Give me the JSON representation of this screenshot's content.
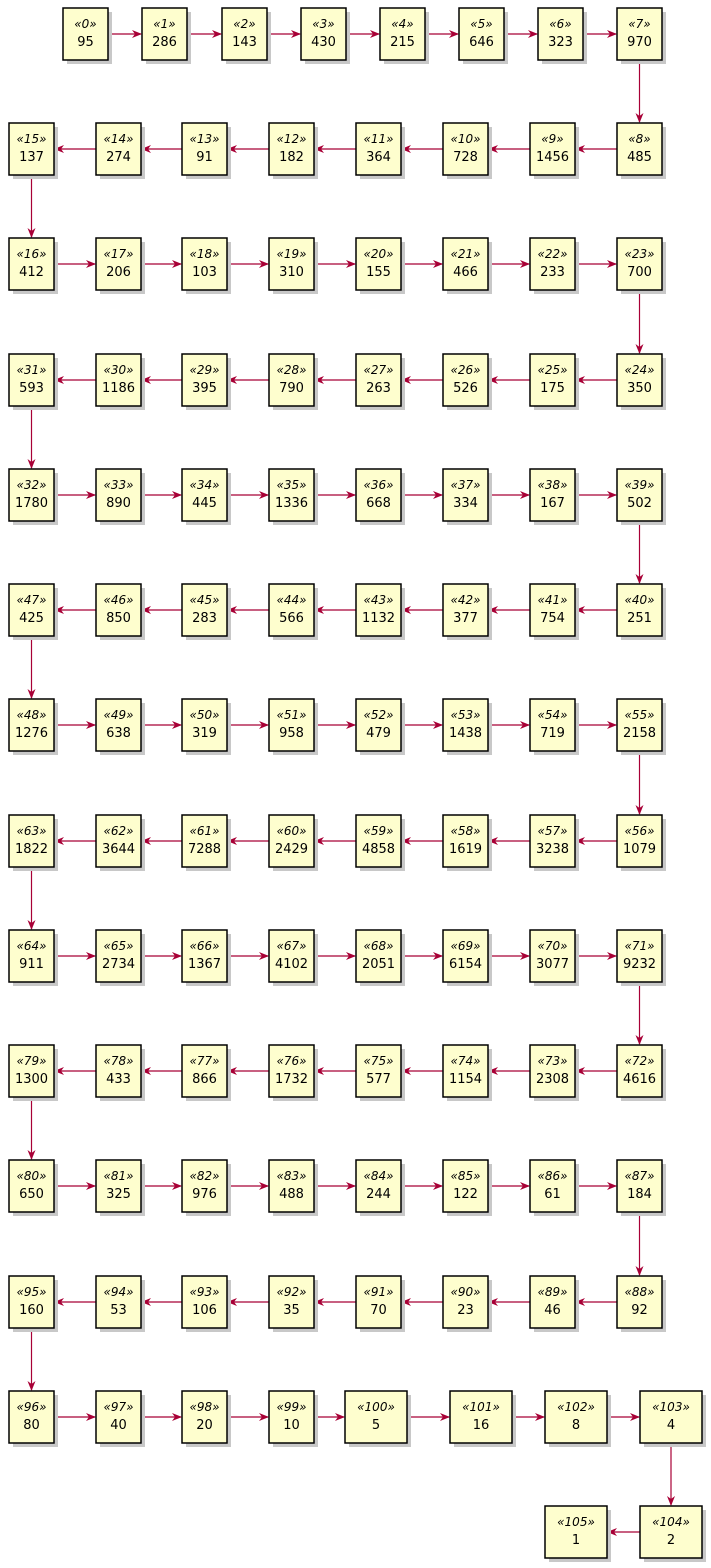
{
  "nodes": [
    {
      "stereotype": "«0»",
      "value": "95"
    },
    {
      "stereotype": "«1»",
      "value": "286"
    },
    {
      "stereotype": "«2»",
      "value": "143"
    },
    {
      "stereotype": "«3»",
      "value": "430"
    },
    {
      "stereotype": "«4»",
      "value": "215"
    },
    {
      "stereotype": "«5»",
      "value": "646"
    },
    {
      "stereotype": "«6»",
      "value": "323"
    },
    {
      "stereotype": "«7»",
      "value": "970"
    },
    {
      "stereotype": "«8»",
      "value": "485"
    },
    {
      "stereotype": "«9»",
      "value": "1456"
    },
    {
      "stereotype": "«10»",
      "value": "728"
    },
    {
      "stereotype": "«11»",
      "value": "364"
    },
    {
      "stereotype": "«12»",
      "value": "182"
    },
    {
      "stereotype": "«13»",
      "value": "91"
    },
    {
      "stereotype": "«14»",
      "value": "274"
    },
    {
      "stereotype": "«15»",
      "value": "137"
    },
    {
      "stereotype": "«16»",
      "value": "412"
    },
    {
      "stereotype": "«17»",
      "value": "206"
    },
    {
      "stereotype": "«18»",
      "value": "103"
    },
    {
      "stereotype": "«19»",
      "value": "310"
    },
    {
      "stereotype": "«20»",
      "value": "155"
    },
    {
      "stereotype": "«21»",
      "value": "466"
    },
    {
      "stereotype": "«22»",
      "value": "233"
    },
    {
      "stereotype": "«23»",
      "value": "700"
    },
    {
      "stereotype": "«24»",
      "value": "350"
    },
    {
      "stereotype": "«25»",
      "value": "175"
    },
    {
      "stereotype": "«26»",
      "value": "526"
    },
    {
      "stereotype": "«27»",
      "value": "263"
    },
    {
      "stereotype": "«28»",
      "value": "790"
    },
    {
      "stereotype": "«29»",
      "value": "395"
    },
    {
      "stereotype": "«30»",
      "value": "1186"
    },
    {
      "stereotype": "«31»",
      "value": "593"
    },
    {
      "stereotype": "«32»",
      "value": "1780"
    },
    {
      "stereotype": "«33»",
      "value": "890"
    },
    {
      "stereotype": "«34»",
      "value": "445"
    },
    {
      "stereotype": "«35»",
      "value": "1336"
    },
    {
      "stereotype": "«36»",
      "value": "668"
    },
    {
      "stereotype": "«37»",
      "value": "334"
    },
    {
      "stereotype": "«38»",
      "value": "167"
    },
    {
      "stereotype": "«39»",
      "value": "502"
    },
    {
      "stereotype": "«40»",
      "value": "251"
    },
    {
      "stereotype": "«41»",
      "value": "754"
    },
    {
      "stereotype": "«42»",
      "value": "377"
    },
    {
      "stereotype": "«43»",
      "value": "1132"
    },
    {
      "stereotype": "«44»",
      "value": "566"
    },
    {
      "stereotype": "«45»",
      "value": "283"
    },
    {
      "stereotype": "«46»",
      "value": "850"
    },
    {
      "stereotype": "«47»",
      "value": "425"
    },
    {
      "stereotype": "«48»",
      "value": "1276"
    },
    {
      "stereotype": "«49»",
      "value": "638"
    },
    {
      "stereotype": "«50»",
      "value": "319"
    },
    {
      "stereotype": "«51»",
      "value": "958"
    },
    {
      "stereotype": "«52»",
      "value": "479"
    },
    {
      "stereotype": "«53»",
      "value": "1438"
    },
    {
      "stereotype": "«54»",
      "value": "719"
    },
    {
      "stereotype": "«55»",
      "value": "2158"
    },
    {
      "stereotype": "«56»",
      "value": "1079"
    },
    {
      "stereotype": "«57»",
      "value": "3238"
    },
    {
      "stereotype": "«58»",
      "value": "1619"
    },
    {
      "stereotype": "«59»",
      "value": "4858"
    },
    {
      "stereotype": "«60»",
      "value": "2429"
    },
    {
      "stereotype": "«61»",
      "value": "7288"
    },
    {
      "stereotype": "«62»",
      "value": "3644"
    },
    {
      "stereotype": "«63»",
      "value": "1822"
    },
    {
      "stereotype": "«64»",
      "value": "911"
    },
    {
      "stereotype": "«65»",
      "value": "2734"
    },
    {
      "stereotype": "«66»",
      "value": "1367"
    },
    {
      "stereotype": "«67»",
      "value": "4102"
    },
    {
      "stereotype": "«68»",
      "value": "2051"
    },
    {
      "stereotype": "«69»",
      "value": "6154"
    },
    {
      "stereotype": "«70»",
      "value": "3077"
    },
    {
      "stereotype": "«71»",
      "value": "9232"
    },
    {
      "stereotype": "«72»",
      "value": "4616"
    },
    {
      "stereotype": "«73»",
      "value": "2308"
    },
    {
      "stereotype": "«74»",
      "value": "1154"
    },
    {
      "stereotype": "«75»",
      "value": "577"
    },
    {
      "stereotype": "«76»",
      "value": "1732"
    },
    {
      "stereotype": "«77»",
      "value": "866"
    },
    {
      "stereotype": "«78»",
      "value": "433"
    },
    {
      "stereotype": "«79»",
      "value": "1300"
    },
    {
      "stereotype": "«80»",
      "value": "650"
    },
    {
      "stereotype": "«81»",
      "value": "325"
    },
    {
      "stereotype": "«82»",
      "value": "976"
    },
    {
      "stereotype": "«83»",
      "value": "488"
    },
    {
      "stereotype": "«84»",
      "value": "244"
    },
    {
      "stereotype": "«85»",
      "value": "122"
    },
    {
      "stereotype": "«86»",
      "value": "61"
    },
    {
      "stereotype": "«87»",
      "value": "184"
    },
    {
      "stereotype": "«88»",
      "value": "92"
    },
    {
      "stereotype": "«89»",
      "value": "46"
    },
    {
      "stereotype": "«90»",
      "value": "23"
    },
    {
      "stereotype": "«91»",
      "value": "70"
    },
    {
      "stereotype": "«92»",
      "value": "35"
    },
    {
      "stereotype": "«93»",
      "value": "106"
    },
    {
      "stereotype": "«94»",
      "value": "53"
    },
    {
      "stereotype": "«95»",
      "value": "160"
    },
    {
      "stereotype": "«96»",
      "value": "80"
    },
    {
      "stereotype": "«97»",
      "value": "40"
    },
    {
      "stereotype": "«98»",
      "value": "20"
    },
    {
      "stereotype": "«99»",
      "value": "10"
    },
    {
      "stereotype": "«100»",
      "value": "5"
    },
    {
      "stereotype": "«101»",
      "value": "16"
    },
    {
      "stereotype": "«102»",
      "value": "8"
    },
    {
      "stereotype": "«103»",
      "value": "4"
    },
    {
      "stereotype": "«104»",
      "value": "2"
    },
    {
      "stereotype": "«105»",
      "value": "1"
    }
  ],
  "colors": {
    "node_fill": "#FEFECE",
    "node_border": "#000000",
    "edge": "#A80036",
    "shadow": "#c8c8c8"
  }
}
